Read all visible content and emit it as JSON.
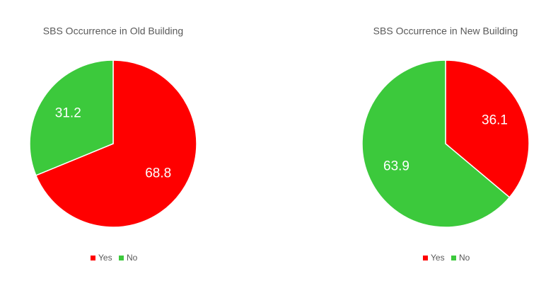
{
  "chart_data": [
    {
      "type": "pie",
      "title": "SBS Occurrence in Old Building",
      "categories": [
        "Yes",
        "No"
      ],
      "values": [
        68.8,
        31.2
      ],
      "colors": [
        "#ff0000",
        "#3cc93c"
      ],
      "legend": "bottom"
    },
    {
      "type": "pie",
      "title": "SBS Occurrence in New Building",
      "categories": [
        "Yes",
        "No"
      ],
      "values": [
        36.1,
        63.9
      ],
      "colors": [
        "#ff0000",
        "#3cc93c"
      ],
      "legend": "bottom"
    }
  ]
}
